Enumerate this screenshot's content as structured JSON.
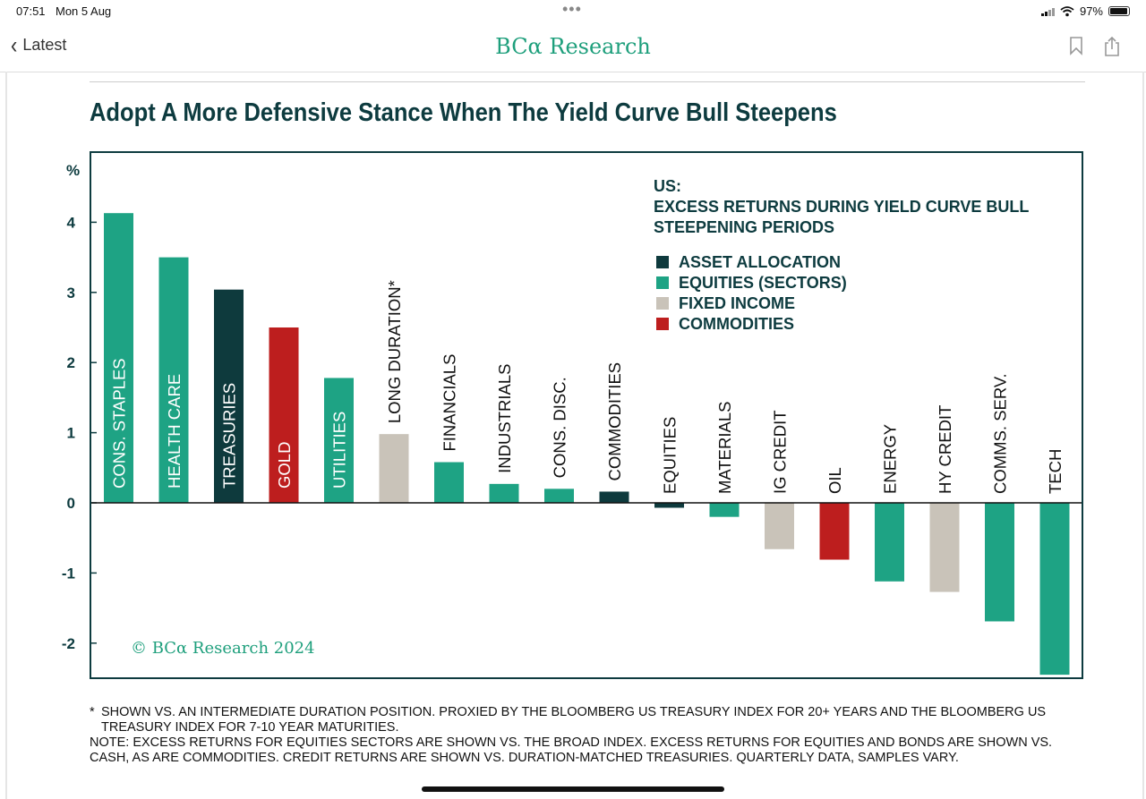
{
  "status": {
    "time": "07:51",
    "date": "Mon 5 Aug",
    "battery": "97%"
  },
  "nav": {
    "back_label": "Latest",
    "brand": "BCα Research",
    "bookmark_icon": "bookmark-icon",
    "share_icon": "share-icon"
  },
  "title": "Adopt A More Defensive Stance When The Yield Curve Bull Steepens",
  "colors": {
    "asset_allocation": "#0e3a3d",
    "equities": "#1ea384",
    "fixed_income": "#c9c3b9",
    "commodities": "#bd1e1e",
    "frame": "#0d3b3f",
    "brand": "#1e9f7c"
  },
  "chart_data": {
    "type": "bar",
    "y_unit": "%",
    "ylim": [
      -2.5,
      5.0
    ],
    "yticks": [
      -2,
      -1,
      0,
      1,
      2,
      3,
      4
    ],
    "legend_title": [
      "US:",
      "EXCESS RETURNS DURING YIELD CURVE BULL",
      "STEEPENING PERIODS"
    ],
    "legend": [
      {
        "label": "ASSET ALLOCATION",
        "group": "asset_allocation"
      },
      {
        "label": "EQUITIES (SECTORS)",
        "group": "equities"
      },
      {
        "label": "FIXED INCOME",
        "group": "fixed_income"
      },
      {
        "label": "COMMODITIES",
        "group": "commodities"
      }
    ],
    "categories": [
      "CONS. STAPLES",
      "HEALTH CARE",
      "TREASURIES",
      "GOLD",
      "UTILITIES",
      "LONG DURATION*",
      "FINANCIALS",
      "INDUSTRIALS",
      "CONS. DISC.",
      "COMMODITIES",
      "EQUITIES",
      "MATERIALS",
      "IG CREDIT",
      "OIL",
      "ENERGY",
      "HY CREDIT",
      "COMMS. SERV.",
      "TECH"
    ],
    "values": [
      4.13,
      3.5,
      3.04,
      2.5,
      1.78,
      0.98,
      0.58,
      0.27,
      0.2,
      0.16,
      -0.07,
      -0.2,
      -0.66,
      -0.81,
      -1.12,
      -1.27,
      -1.69,
      -2.45
    ],
    "groups": [
      "equities",
      "equities",
      "asset_allocation",
      "commodities",
      "equities",
      "fixed_income",
      "equities",
      "equities",
      "equities",
      "asset_allocation",
      "asset_allocation",
      "equities",
      "fixed_income",
      "commodities",
      "equities",
      "fixed_income",
      "equities",
      "equities"
    ],
    "copyright": "© BCα Research 2024"
  },
  "footnote": {
    "line1_marker": "*",
    "line1": "SHOWN VS. AN INTERMEDIATE DURATION POSITION. PROXIED BY THE BLOOMBERG US TREASURY INDEX FOR 20+ YEARS AND THE BLOOMBERG US TREASURY INDEX FOR 7-10 YEAR MATURITIES.",
    "note": "NOTE: EXCESS RETURNS FOR EQUITIES SECTORS ARE SHOWN VS. THE BROAD INDEX. EXCESS RETURNS FOR EQUITIES AND BONDS ARE SHOWN VS. CASH, AS ARE COMMODITIES. CREDIT RETURNS ARE SHOWN VS. DURATION-MATCHED TREASURIES. QUARTERLY DATA, SAMPLES VARY."
  }
}
